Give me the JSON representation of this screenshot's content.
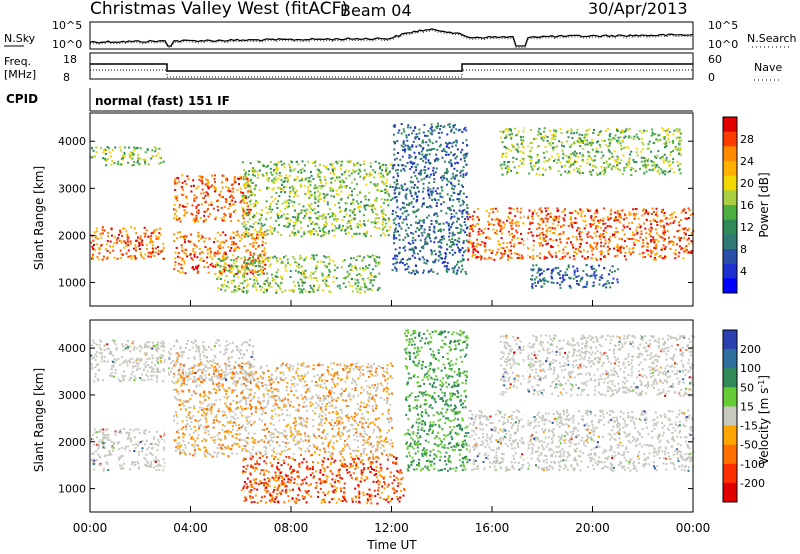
{
  "header": {
    "station": "Christmas Valley West (fitACF)",
    "beam": "Beam 04",
    "date": "30/Apr/2013"
  },
  "noise_panel": {
    "left_label": "N.Sky",
    "right_label": "N.Search",
    "left_ticks": [
      "10^5",
      "10^0"
    ],
    "right_ticks": [
      "10^5",
      "10^0"
    ]
  },
  "freq_panel": {
    "left_label_line1": "Freq.",
    "left_label_line2": "[MHz]",
    "right_label": "Nave",
    "left_ticks": [
      "18",
      "8"
    ],
    "right_ticks": [
      "60",
      "0"
    ]
  },
  "cpid": {
    "label": "CPID",
    "mode": "normal (fast) 151 IF"
  },
  "chart_data": [
    {
      "type": "heatmap",
      "name_in_image": "Power",
      "ylabel": "Slant Range [km]",
      "yticks": [
        "1000",
        "2000",
        "3000",
        "4000"
      ],
      "ylim": [
        500,
        4600
      ],
      "xlim": [
        0,
        24
      ],
      "colorbar": {
        "label": "Power [dB]",
        "ticks": [
          "28",
          "24",
          "20",
          "16",
          "12",
          "8",
          "4"
        ],
        "colors": [
          "#e00000",
          "#ff3c00",
          "#ff8a00",
          "#ffb000",
          "#f0d800",
          "#a8d040",
          "#4cb040",
          "#2e8b57",
          "#2f7a74",
          "#2a4fa6",
          "#1e2fd0",
          "#0000ff"
        ]
      },
      "bands": [
        {
          "t": [
            0,
            3
          ],
          "r": [
            1500,
            2200
          ],
          "level": "high"
        },
        {
          "t": [
            0,
            2.9
          ],
          "r": [
            3500,
            3900
          ],
          "level": "mid"
        },
        {
          "t": [
            3.3,
            6.4
          ],
          "r": [
            2300,
            3300
          ],
          "level": "high"
        },
        {
          "t": [
            3.3,
            7
          ],
          "r": [
            1200,
            2100
          ],
          "level": "high"
        },
        {
          "t": [
            5,
            11.5
          ],
          "r": [
            800,
            1600
          ],
          "level": "mid"
        },
        {
          "t": [
            6,
            12
          ],
          "r": [
            2000,
            3600
          ],
          "level": "mid"
        },
        {
          "t": [
            12,
            15
          ],
          "r": [
            1200,
            4400
          ],
          "level": "low"
        },
        {
          "t": [
            15,
            24
          ],
          "r": [
            1500,
            2600
          ],
          "level": "high"
        },
        {
          "t": [
            16.3,
            23.5
          ],
          "r": [
            3300,
            4300
          ],
          "level": "mid"
        },
        {
          "t": [
            17.5,
            21
          ],
          "r": [
            900,
            1400
          ],
          "level": "low"
        }
      ]
    },
    {
      "type": "heatmap",
      "name_in_image": "Velocity",
      "ylabel": "Slant Range [km]",
      "yticks": [
        "1000",
        "2000",
        "3000",
        "4000"
      ],
      "ylim": [
        500,
        4600
      ],
      "xlim": [
        0,
        24
      ],
      "xticks": [
        "00:00",
        "04:00",
        "08:00",
        "12:00",
        "16:00",
        "20:00",
        "00:00"
      ],
      "xlabel": "Time UT",
      "colorbar": {
        "label": "Velocity [m s^-1]",
        "ticks": [
          "200",
          "100",
          "50",
          "15",
          "-15",
          "-50",
          "-100",
          "-200"
        ],
        "colors": [
          "#2a3fb0",
          "#2f6fa0",
          "#2e8b57",
          "#66cc33",
          "#c8c8c0",
          "#ffa500",
          "#ff7000",
          "#ff3000",
          "#e00000"
        ]
      },
      "bands": [
        {
          "t": [
            0,
            3
          ],
          "r": [
            1400,
            2300
          ],
          "level": "ground"
        },
        {
          "t": [
            0,
            6.5
          ],
          "r": [
            3300,
            4200
          ],
          "level": "ground"
        },
        {
          "t": [
            3.3,
            12
          ],
          "r": [
            1700,
            3700
          ],
          "level": "mixed"
        },
        {
          "t": [
            6,
            12.5
          ],
          "r": [
            700,
            1700
          ],
          "level": "negative"
        },
        {
          "t": [
            12.5,
            15
          ],
          "r": [
            1400,
            4400
          ],
          "level": "positive"
        },
        {
          "t": [
            15,
            24
          ],
          "r": [
            1400,
            2700
          ],
          "level": "ground"
        },
        {
          "t": [
            16.3,
            24
          ],
          "r": [
            3000,
            4300
          ],
          "level": "ground"
        }
      ]
    }
  ]
}
